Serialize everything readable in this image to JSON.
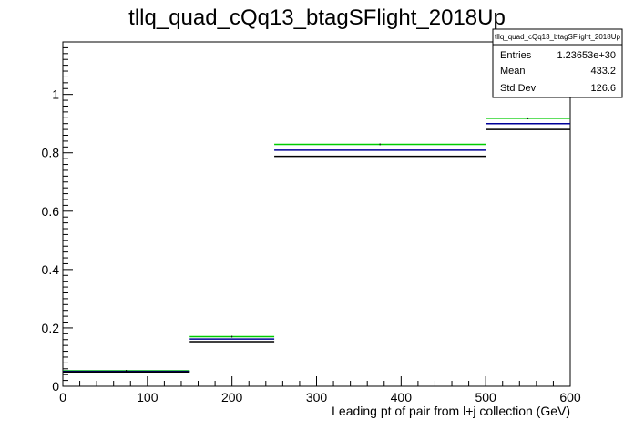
{
  "chart_data": {
    "type": "histogram",
    "title": "tllq_quad_cQq13_btagSFlight_2018Up",
    "xlabel": "Leading pt of pair from l+j collection (GeV)",
    "ylabel": "",
    "xlim": [
      0,
      600
    ],
    "ylim": [
      0,
      1.18
    ],
    "x_ticks": [
      "0",
      "100",
      "200",
      "300",
      "400",
      "500",
      "600"
    ],
    "y_ticks": [
      "0",
      "0.2",
      "0.4",
      "0.6",
      "0.8",
      "1"
    ],
    "bins": [
      {
        "low": 0,
        "high": 150
      },
      {
        "low": 150,
        "high": 250
      },
      {
        "low": 250,
        "high": 500
      },
      {
        "low": 500,
        "high": 600
      }
    ],
    "series": [
      {
        "color": "#00cc00",
        "values": [
          0.053,
          0.17,
          0.829,
          0.918
        ]
      },
      {
        "color": "#000099",
        "values": [
          0.051,
          0.162,
          0.809,
          0.9
        ]
      },
      {
        "color": "#000000",
        "values": [
          0.049,
          0.153,
          0.788,
          0.88
        ]
      }
    ],
    "legend": "none",
    "grid": false,
    "stats_box": {
      "title": "tllq_quad_cQq13_btagSFlight_2018Up",
      "rows": [
        {
          "label": "Entries",
          "value": "1.23653e+30"
        },
        {
          "label": "Mean",
          "value": "433.2"
        },
        {
          "label": "Std Dev",
          "value": "126.6"
        }
      ],
      "placement": "top-right"
    }
  }
}
